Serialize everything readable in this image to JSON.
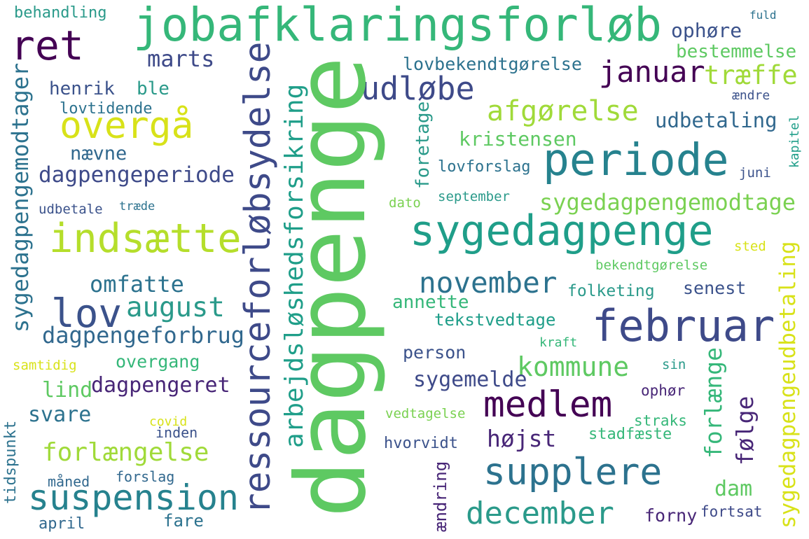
{
  "words": [
    "jobafklaringsforløb",
    "ret",
    "behandling",
    "fuld",
    "ophøre",
    "bestemmelse",
    "marts",
    "lovbekendtgørelse",
    "januar",
    "træffe",
    "henrik",
    "ble",
    "udløbe",
    "ændre",
    "lovtidende",
    "afgørelse",
    "udbetaling",
    "overgå",
    "kristensen",
    "nævne",
    "periode",
    "lovforslag",
    "dagpengeperiode",
    "juni",
    "sygedagpengemodtage",
    "dato",
    "september",
    "udbetale",
    "træde",
    "sygedagpenge",
    "indsætte",
    "sted",
    "bekendtgørelse",
    "omfatte",
    "november",
    "folketing",
    "senest",
    "lov",
    "august",
    "annette",
    "tekstvedtage",
    "februar",
    "dagpengeforbrug",
    "kraft",
    "person",
    "samtidig",
    "overgang",
    "sin",
    "kommune",
    "sygemelde",
    "lind",
    "dagpengeret",
    "ophør",
    "medlem",
    "svare",
    "vedtagelse",
    "covid",
    "straks",
    "inden",
    "stadfæste",
    "højst",
    "hvorvidt",
    "forlængelse",
    "supplere",
    "måned",
    "forslag",
    "dam",
    "suspension",
    "december",
    "fortsat",
    "forny",
    "fare",
    "april",
    "dagpenge",
    "ressourceforløbsydelse",
    "arbejdsløshedsforsikring",
    "sygedagpengemodtager",
    "tidspunkt",
    "foretage",
    "kapitel",
    "forlænge",
    "følge",
    "sygedagpengeudbetaling",
    "ændring"
  ]
}
